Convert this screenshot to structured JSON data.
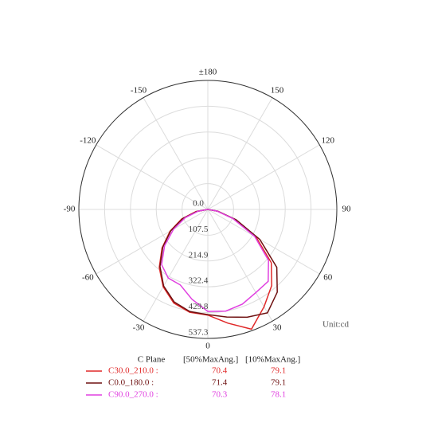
{
  "chart_data": {
    "type": "polar",
    "unit_label": "Unit:cd",
    "x": [
      -90,
      -80,
      -70,
      -60,
      -50,
      -40,
      -30,
      -20,
      -10,
      0,
      10,
      20,
      30,
      40,
      50,
      60,
      70,
      80,
      90
    ],
    "rlim": [
      0,
      537.3
    ],
    "rticks": [
      {
        "value": 0,
        "label": "0.0"
      },
      107.5,
      214.9,
      322.4,
      429.8,
      537.3
    ],
    "angle_ticks": [
      {
        "value": 180,
        "label": "±180"
      },
      -150,
      -120,
      -90,
      -60,
      -30,
      0,
      30,
      60,
      90,
      120,
      150
    ],
    "grid": true,
    "legend_header": [
      "C Plane",
      "[50%MaxAng.]",
      "[10%MaxAng.]"
    ],
    "series": [
      {
        "name": "C30.0_210.0 :",
        "color": "#e02828",
        "half_angle": 70.4,
        "tenth_angle": 79.1,
        "values": [
          0,
          50,
          116,
          182,
          249,
          315,
          372,
          415,
          435,
          440,
          481,
          531,
          468,
          414,
          345,
          233,
          116,
          40,
          0
        ]
      },
      {
        "name": "C0.0_180.0 :",
        "color": "#6e1010",
        "half_angle": 71.4,
        "tenth_angle": 79.1,
        "values": [
          0,
          45,
          110,
          178,
          245,
          310,
          368,
          410,
          432,
          438,
          455,
          478,
          497,
          450,
          375,
          250,
          125,
          42,
          0
        ]
      },
      {
        "name": "C90.0_270.0 :",
        "color": "#e040e0",
        "half_angle": 70.3,
        "tenth_angle": 78.1,
        "values": [
          0,
          40,
          100,
          165,
          235,
          300,
          330,
          335,
          380,
          425,
          430,
          420,
          400,
          391,
          330,
          225,
          110,
          38,
          0
        ]
      }
    ]
  }
}
